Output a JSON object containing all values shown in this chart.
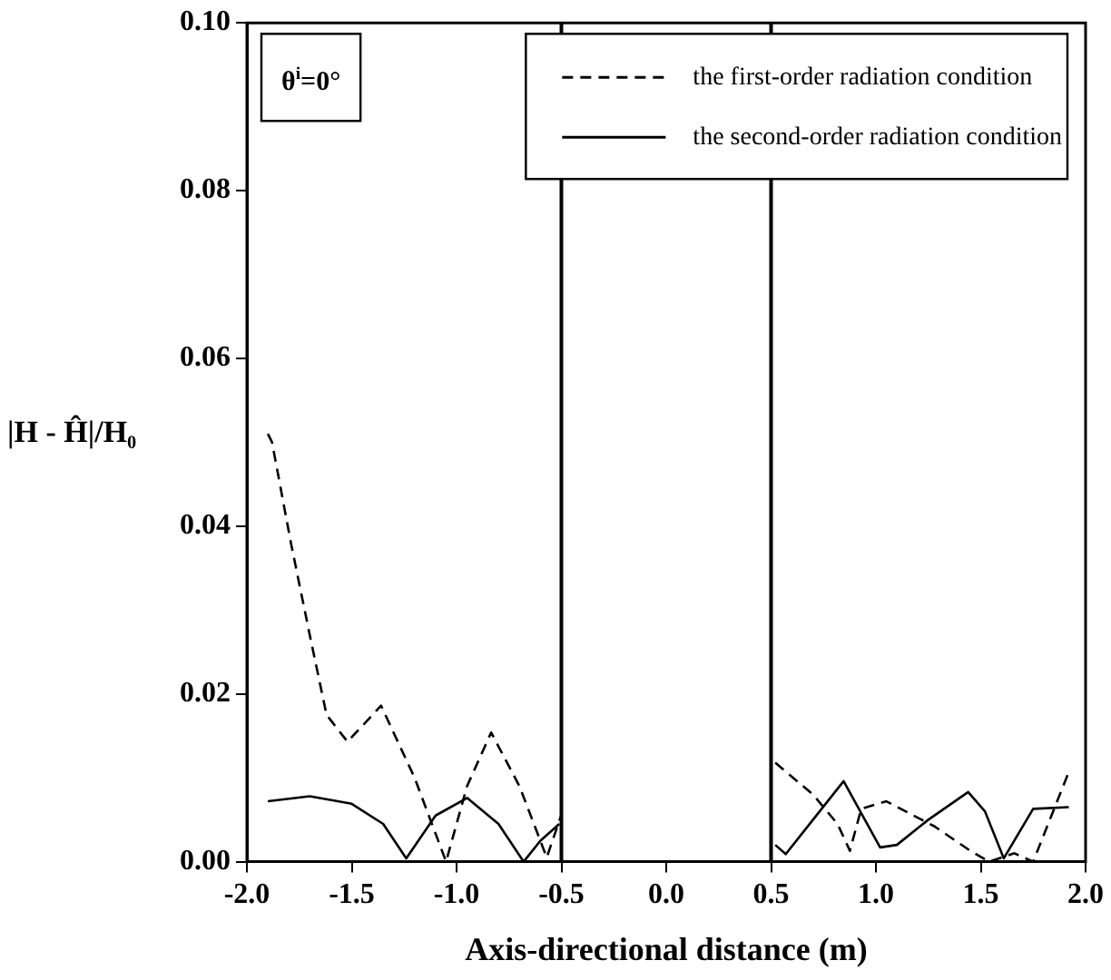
{
  "chart_data": {
    "type": "line",
    "xlabel": "Axis-directional distance (m)",
    "ylabel": "|H - Ĥ|/H₀",
    "annotations": [
      "θ$^{i}$=0°"
    ],
    "xlim": [
      -2.0,
      2.0
    ],
    "xticks": [
      {
        "value": -2.0,
        "label": "-2.0"
      },
      {
        "value": -1.5,
        "label": "-1.5"
      },
      {
        "value": -1.0,
        "label": "-1.0"
      },
      {
        "value": -0.5,
        "label": "-0.5"
      },
      {
        "value": 0,
        "label": "0.0"
      },
      {
        "value": 0.5,
        "label": "0.5"
      },
      {
        "value": 1.0,
        "label": "1.0"
      },
      {
        "value": 1.5,
        "label": "1.5"
      },
      {
        "value": 2.0,
        "label": "2.0"
      }
    ],
    "ylim": [
      0,
      0.1
    ],
    "yticks": [
      {
        "value": 0,
        "label": "0.00"
      },
      {
        "value": 0.02,
        "label": "0.02"
      },
      {
        "value": 0.04,
        "label": "0.04"
      },
      {
        "value": 0.06,
        "label": "0.06"
      },
      {
        "value": 0.08,
        "label": "0.08"
      },
      {
        "value": 0.1,
        "label": "0.10"
      }
    ],
    "grid": false,
    "legend": "top right",
    "marker": "none",
    "ref_lines": [
      {
        "axis": "x",
        "value": -0.5,
        "color": "#000000"
      },
      {
        "axis": "x",
        "value": 0.5,
        "color": "#000000"
      }
    ],
    "series": [
      {
        "name": "the first-order radiation condition",
        "color": "#000000",
        "line_style": "dashed",
        "x": [
          -1.9,
          -1.88,
          -1.79,
          -1.7,
          -1.62,
          -1.52,
          -1.36,
          -1.2,
          -1.05,
          -0.95,
          -0.835,
          -0.7,
          -0.57,
          -0.5,
          0,
          0.52,
          0.7,
          0.817,
          0.876,
          0.93,
          1.05,
          1.28,
          1.45,
          1.54,
          1.66,
          1.75,
          1.92
        ],
        "values": [
          0.051,
          0.05,
          0.038,
          0.027,
          0.0175,
          0.0143,
          0.0186,
          0.01,
          0.0,
          0.009,
          0.0154,
          0.009,
          0.0005,
          0.0056,
          null,
          0.0118,
          0.008,
          0.0045,
          0.0013,
          0.0063,
          0.0072,
          0.0042,
          0.0013,
          0.0,
          0.001,
          0.0,
          0.0107
        ]
      },
      {
        "name": "the second-order radiation condition",
        "color": "#000000",
        "line_style": "solid",
        "x": [
          -1.9,
          -1.7,
          -1.5,
          -1.35,
          -1.24,
          -1.1,
          -0.95,
          -0.8,
          -0.68,
          -0.6,
          -0.51,
          0,
          0.52,
          0.57,
          0.7,
          0.846,
          1.02,
          1.1,
          1.25,
          1.44,
          1.52,
          1.61,
          1.75,
          1.92
        ],
        "values": [
          0.0072,
          0.0078,
          0.0069,
          0.0045,
          0.0004,
          0.0055,
          0.0076,
          0.0045,
          0.0,
          0.0025,
          0.0045,
          null,
          0.002,
          0.0009,
          0.005,
          0.0096,
          0.0017,
          0.002,
          0.005,
          0.0083,
          0.006,
          0.0004,
          0.0063,
          0.0065
        ]
      }
    ]
  }
}
